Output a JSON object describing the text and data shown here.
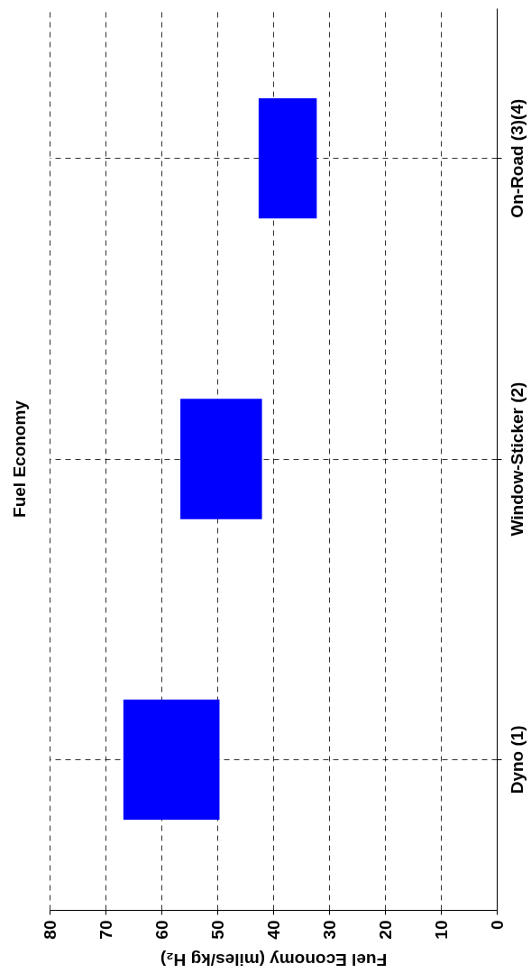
{
  "chart_data": {
    "type": "bar",
    "orientation": "horizontal",
    "title": "Fuel Economy",
    "xlabel": "Fuel Economy (miles/kg H₂)",
    "categories": [
      "On-Road (3)(4)",
      "Window-Sticker (2)",
      "Dyno (1)"
    ],
    "base": [
      32.2,
      42.0,
      49.6
    ],
    "values": [
      10.4,
      14.6,
      17.2
    ],
    "color": "#0000ff",
    "xlim": [
      80,
      0
    ],
    "xticks": [
      80,
      70,
      60,
      50,
      40,
      30,
      20,
      10,
      0
    ],
    "grid": true
  }
}
